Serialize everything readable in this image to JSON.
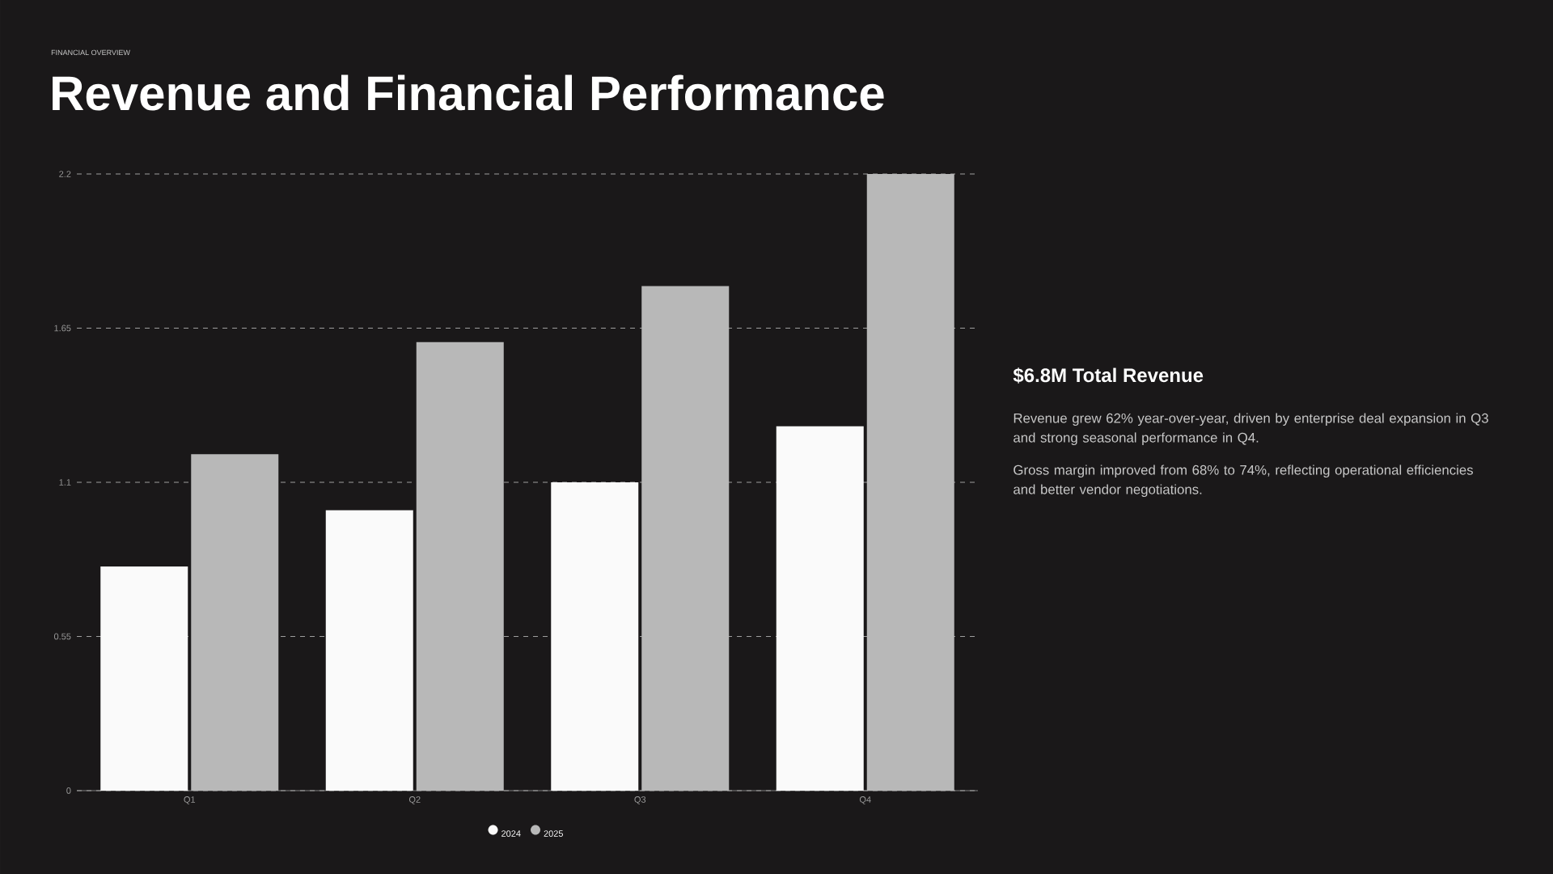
{
  "chart_data": {
    "type": "bar",
    "subtitle": "FINANCIAL OVERVIEW",
    "title": "Revenue and Financial Performance",
    "categories": [
      "Q1",
      "Q2",
      "Q3",
      "Q4"
    ],
    "series": [
      {
        "name": "2024",
        "color": "#fafafa",
        "values": [
          0.8,
          1.0,
          1.1,
          1.3
        ]
      },
      {
        "name": "2025",
        "color": "#b8b8b8",
        "values": [
          1.2,
          1.6,
          1.8,
          2.2
        ]
      }
    ],
    "ylim": [
      0,
      2.2
    ],
    "yticks": [
      0,
      0.55,
      1.1,
      1.65,
      2.2
    ],
    "grid": "y",
    "legend": "bottom",
    "annotations": [
      "$6.8M Total Revenue",
      "Revenue grew 62% year-over-year, driven by enterprise deal expansion in Q3 and strong seasonal performance in Q4.",
      "Gross margin improved from 68% to 74%, reflecting operational efficiencies and better vendor negotiations."
    ]
  }
}
